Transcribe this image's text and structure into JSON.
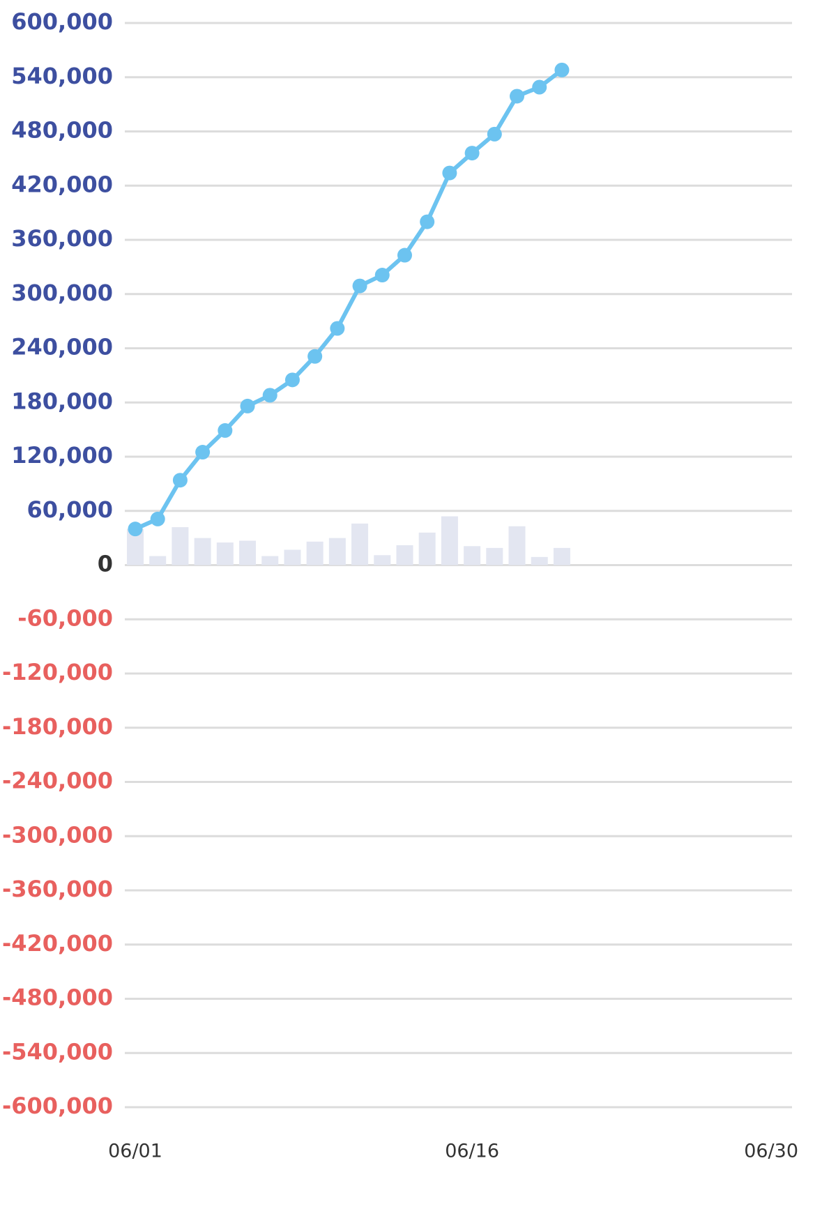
{
  "chart_data": {
    "type": "line",
    "x": [
      1,
      2,
      3,
      4,
      5,
      6,
      7,
      8,
      9,
      10,
      11,
      12,
      13,
      14,
      15,
      16,
      17,
      18,
      19,
      20
    ],
    "series": [
      {
        "type": "bar",
        "color": "#e3e6f1",
        "values": [
          40000,
          10000,
          42000,
          30000,
          25000,
          27000,
          10000,
          17000,
          26000,
          30000,
          46000,
          11000,
          22000,
          36000,
          54000,
          21000,
          19000,
          43000,
          9000,
          19000
        ]
      },
      {
        "type": "line",
        "color": "#6cc3f0",
        "values": [
          40000,
          51000,
          94000,
          125000,
          149000,
          176000,
          188000,
          205000,
          231000,
          262000,
          309000,
          321000,
          343000,
          380000,
          434000,
          456000,
          477000,
          519000,
          529000,
          548000
        ]
      }
    ],
    "xlim": [
      1,
      30
    ],
    "xticks": [
      {
        "value": 1,
        "label": "06/01"
      },
      {
        "value": 16,
        "label": "06/16"
      },
      {
        "value": 30,
        "label": "06/30"
      }
    ],
    "ylim": [
      -600000,
      600000
    ],
    "yticks": [
      {
        "value": 600000,
        "label": "600,000"
      },
      {
        "value": 540000,
        "label": "540,000"
      },
      {
        "value": 480000,
        "label": "480,000"
      },
      {
        "value": 420000,
        "label": "420,000"
      },
      {
        "value": 360000,
        "label": "360,000"
      },
      {
        "value": 300000,
        "label": "300,000"
      },
      {
        "value": 240000,
        "label": "240,000"
      },
      {
        "value": 180000,
        "label": "180,000"
      },
      {
        "value": 120000,
        "label": "120,000"
      },
      {
        "value": 60000,
        "label": "60,000"
      },
      0,
      {
        "value": -60000,
        "label": "-60,000"
      },
      {
        "value": -120000,
        "label": "-120,000"
      },
      {
        "value": -180000,
        "label": "-180,000"
      },
      {
        "value": -240000,
        "label": "-240,000"
      },
      {
        "value": -300000,
        "label": "-300,000"
      },
      {
        "value": -360000,
        "label": "-360,000"
      },
      {
        "value": -420000,
        "label": "-420,000"
      },
      {
        "value": -480000,
        "label": "-480,000"
      },
      {
        "value": -540000,
        "label": "-540,000"
      },
      {
        "value": -600000,
        "label": "-600,000"
      }
    ],
    "grid": true
  }
}
